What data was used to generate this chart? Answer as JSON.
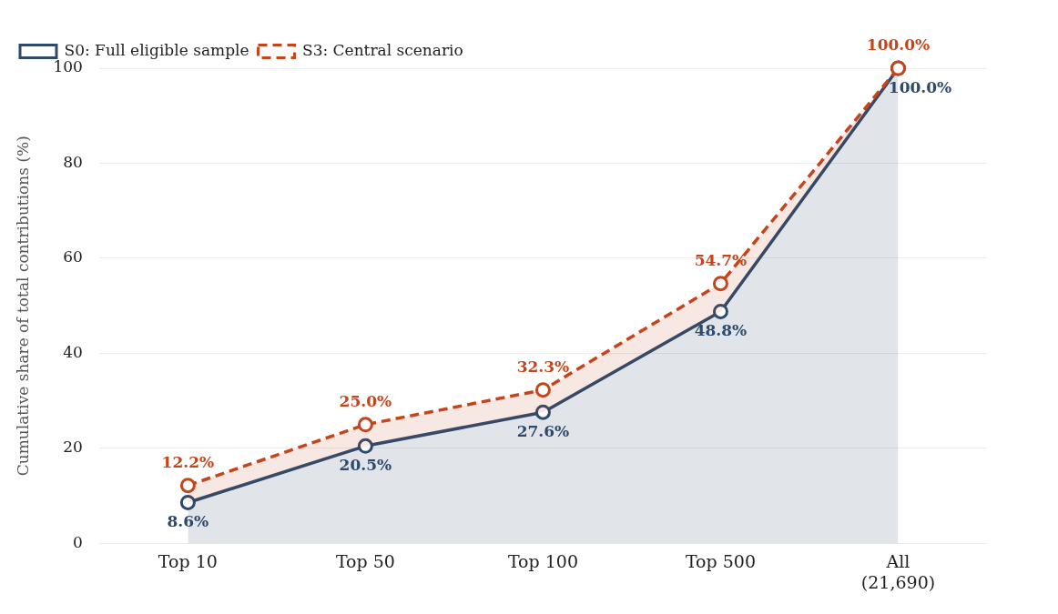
{
  "chart_data": {
    "type": "area",
    "ylabel": "Cumulative share of total contributions (%)",
    "categories": [
      "Top 10",
      "Top 50",
      "Top 100",
      "Top 500",
      "All\n(21,690)"
    ],
    "series": [
      {
        "name": "S0: Full eligible sample",
        "color": "#2e4a6b",
        "line_style": "solid",
        "values": [
          8.6,
          20.5,
          27.6,
          48.8,
          100.0
        ],
        "value_labels": [
          "8.6%",
          "20.5%",
          "27.6%",
          "48.8%",
          "100.0%"
        ]
      },
      {
        "name": "S3: Central scenario",
        "type": "area",
        "color": "#c4451c",
        "line_style": "dashed",
        "values": [
          12.2,
          25.0,
          32.3,
          54.7,
          100.0
        ],
        "value_labels": [
          "12.2%",
          "25.0%",
          "32.3%",
          "54.7%",
          "100.0%"
        ]
      }
    ],
    "ylim": [
      0,
      100
    ],
    "yticks": [
      0,
      20,
      40,
      60,
      80,
      100
    ],
    "grid": "y",
    "legend": "top left",
    "marker": "circle"
  }
}
